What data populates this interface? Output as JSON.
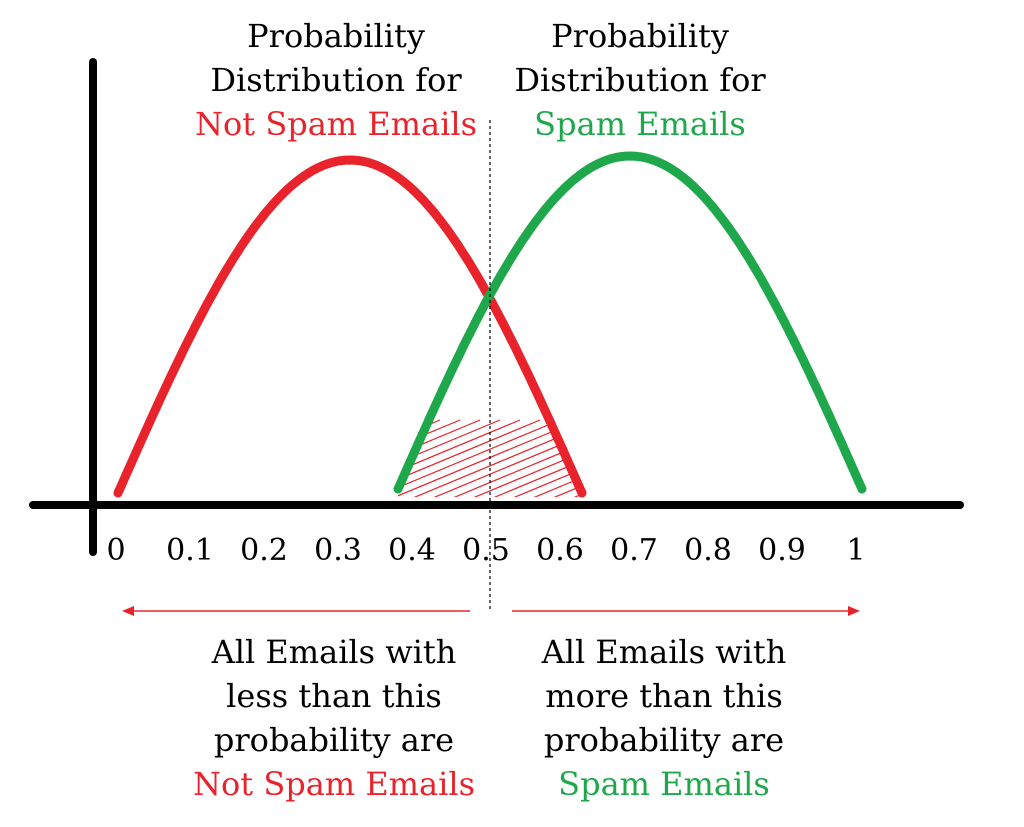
{
  "colors": {
    "not_spam": "#e8232b",
    "spam": "#1ea84b",
    "axis": "#000000",
    "hatch": "#e8232b",
    "arrow": "#e8232b"
  },
  "top_left_label": {
    "line1": "Probability",
    "line2": "Distribution for",
    "highlight": "Not Spam Emails"
  },
  "top_right_label": {
    "line1": "Probability",
    "line2": "Distribution for",
    "highlight": "Spam Emails"
  },
  "axis": {
    "ticks": [
      "0",
      "0.1",
      "0.2",
      "0.3",
      "0.4",
      "0.5",
      "0.6",
      "0.7",
      "0.8",
      "0.9",
      "1"
    ]
  },
  "bottom_left_label": {
    "line1": "All Emails with",
    "line2": "less than this",
    "line3": "probability are",
    "highlight": "Not Spam Emails"
  },
  "bottom_right_label": {
    "line1": "All Emails with",
    "line2": "more than this",
    "line3": "probability are",
    "highlight": "Spam Emails"
  }
}
